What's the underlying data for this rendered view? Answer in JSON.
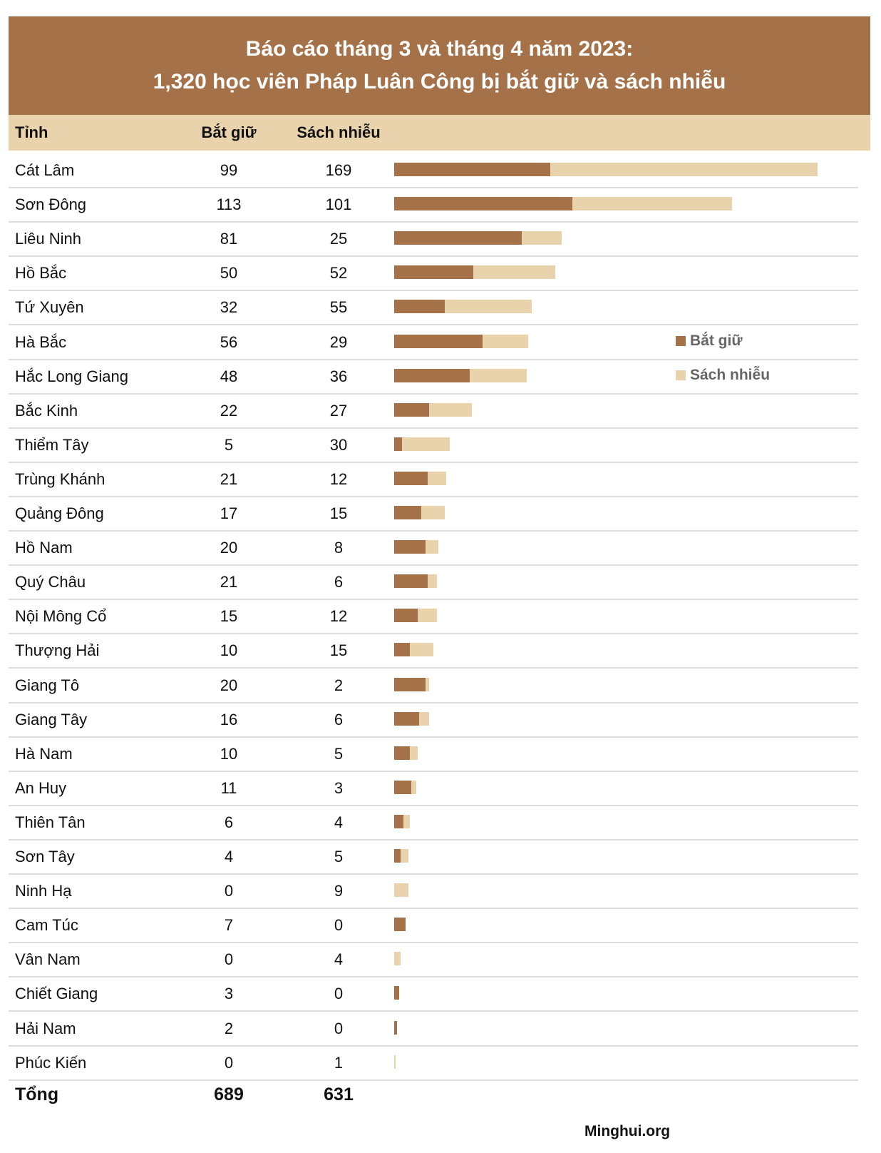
{
  "title_line1": "Báo cáo tháng 3 và tháng 4 năm 2023:",
  "title_line2": "1,320 học viên Pháp Luân Công bị bắt giữ và sách nhiễu",
  "columns": {
    "province": "Tỉnh",
    "arrested": "Bắt giữ",
    "harassed": "Sách nhiễu"
  },
  "colors": {
    "arrested": "#A47148",
    "harassed": "#E9D3AC",
    "banner": "#A47148",
    "header_row": "#E9D3AC"
  },
  "legend": [
    {
      "label": "Bắt giữ",
      "color": "#A47148"
    },
    {
      "label": "Sách nhiễu",
      "color": "#E9D3AC"
    }
  ],
  "total": {
    "label": "Tổng",
    "arrested": "689",
    "harassed": "631"
  },
  "source": "Minghui.org",
  "chart_data": {
    "type": "bar",
    "orientation": "horizontal",
    "stacked": true,
    "categories": [
      "Cát Lâm",
      "Sơn Đông",
      "Liêu Ninh",
      "Hồ Bắc",
      "Tứ Xuyên",
      "Hà Bắc",
      "Hắc Long Giang",
      "Bắc Kinh",
      "Thiểm Tây",
      "Trùng Khánh",
      "Quảng Đông",
      "Hồ Nam",
      "Quý Châu",
      "Nội Mông Cổ",
      "Thượng Hải",
      "Giang Tô",
      "Giang Tây",
      "Hà Nam",
      "An Huy",
      "Thiên Tân",
      "Sơn Tây",
      "Ninh Hạ",
      "Cam Túc",
      "Vân Nam",
      "Chiết Giang",
      "Hải Nam",
      "Phúc Kiến"
    ],
    "series": [
      {
        "name": "Bắt giữ",
        "values": [
          99,
          113,
          81,
          50,
          32,
          56,
          48,
          22,
          5,
          21,
          17,
          20,
          21,
          15,
          10,
          20,
          16,
          10,
          11,
          6,
          4,
          0,
          7,
          0,
          3,
          2,
          0
        ]
      },
      {
        "name": "Sách nhiễu",
        "values": [
          169,
          101,
          25,
          52,
          55,
          29,
          36,
          27,
          30,
          12,
          15,
          8,
          6,
          12,
          15,
          2,
          6,
          5,
          3,
          4,
          5,
          9,
          0,
          4,
          0,
          0,
          1
        ]
      }
    ],
    "legend_position": "right",
    "grid": false
  }
}
